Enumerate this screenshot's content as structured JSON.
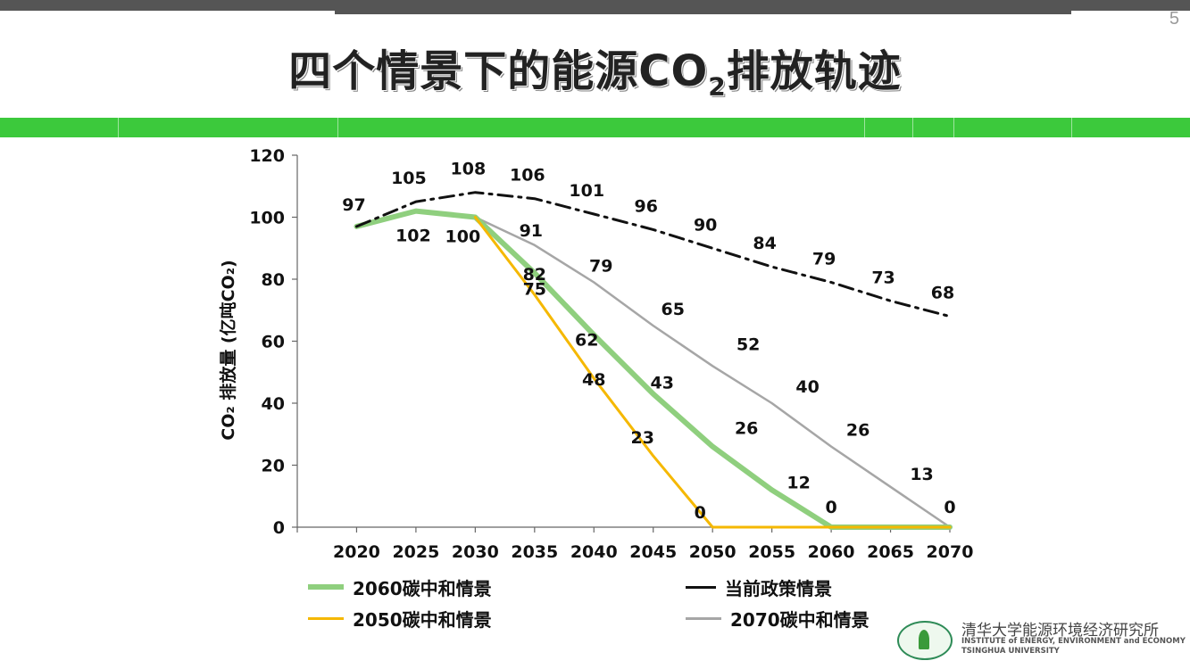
{
  "page": {
    "number": "5",
    "title_main": "四个情景下的能源CO",
    "title_sub": "2",
    "title_tail": "排放轨迹"
  },
  "colors": {
    "green_band": "#3cc93c",
    "series_2060": "#8fcf7e",
    "series_2050": "#f5b800",
    "series_current": "#111111",
    "series_2070": "#a6a6a6"
  },
  "chart_data": {
    "type": "line",
    "ylabel": "CO₂ 排放量 (亿吨CO₂)",
    "ylim": [
      0,
      120
    ],
    "yticks": [
      0,
      20,
      40,
      60,
      80,
      100,
      120
    ],
    "categories": [
      "2020",
      "2025",
      "2030",
      "2035",
      "2040",
      "2045",
      "2050",
      "2055",
      "2060",
      "2065",
      "2070"
    ],
    "series": [
      {
        "name": "当前政策情景",
        "style": "dashdot",
        "x": [
          2020,
          2025,
          2030,
          2035,
          2040,
          2045,
          2050,
          2055,
          2060,
          2065,
          2070
        ],
        "values": [
          97,
          105,
          108,
          106,
          101,
          96,
          90,
          84,
          79,
          73,
          68
        ],
        "labels": [
          "97",
          "105",
          "108",
          "106",
          "101",
          "96",
          "90",
          "84",
          "79",
          "73",
          "68"
        ]
      },
      {
        "name": "2070碳中和情景",
        "style": "solid",
        "x": [
          2020,
          2025,
          2030,
          2035,
          2040,
          2045,
          2050,
          2055,
          2060,
          2065,
          2070
        ],
        "values": [
          97,
          102,
          100,
          91,
          79,
          65,
          52,
          40,
          26,
          13,
          0
        ],
        "labels": [
          "",
          "102",
          "100",
          "91",
          "79",
          "65",
          "52",
          "40",
          "26",
          "13",
          "0"
        ]
      },
      {
        "name": "2060碳中和情景",
        "style": "thick",
        "x": [
          2020,
          2025,
          2030,
          2035,
          2040,
          2045,
          2050,
          2055,
          2060,
          2065,
          2070
        ],
        "values": [
          97,
          102,
          100,
          82,
          62,
          43,
          26,
          12,
          0,
          0,
          0
        ],
        "labels": [
          "",
          "",
          "",
          "82",
          "62",
          "43",
          "26",
          "12",
          "0",
          "",
          ""
        ]
      },
      {
        "name": "2050碳中和情景",
        "style": "solid",
        "x": [
          2030,
          2035,
          2040,
          2045,
          2050,
          2055,
          2060,
          2065,
          2070
        ],
        "values": [
          100,
          75,
          48,
          23,
          0,
          0,
          0,
          0,
          0
        ],
        "labels": [
          "",
          "75",
          "48",
          "23",
          "0",
          "",
          "",
          "",
          ""
        ]
      }
    ],
    "legend": [
      {
        "name": "2060碳中和情景",
        "series": 2
      },
      {
        "name": "当前政策情景",
        "series": 0
      },
      {
        "name": "2050碳中和情景",
        "series": 3
      },
      {
        "name": "2070碳中和情景",
        "series": 1
      }
    ]
  },
  "logo": {
    "cn": "清华大学能源环境经济研究所",
    "en1": "INSTITUTE of ENERGY, ENVIRONMENT and ECONOMY",
    "en2": "TSINGHUA UNIVERSITY"
  }
}
